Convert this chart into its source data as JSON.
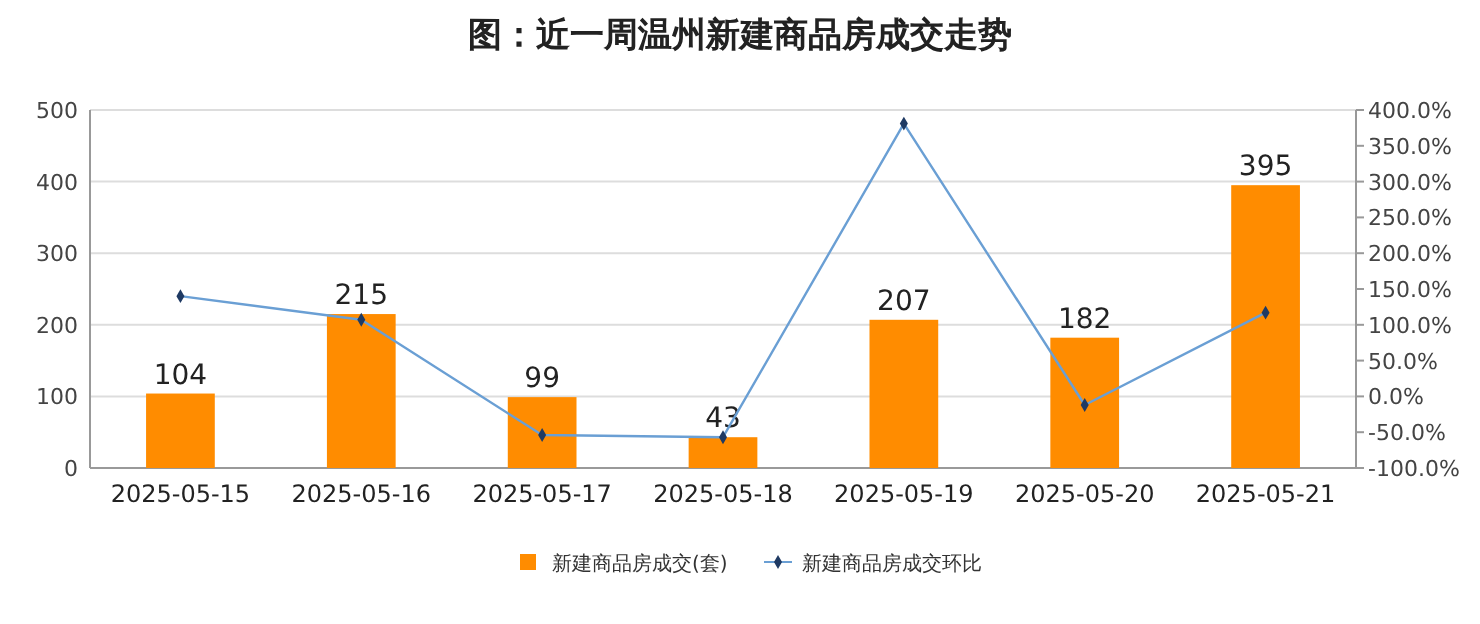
{
  "chart_data": {
    "type": "bar",
    "title": "图：近一周温州新建商品房成交走势",
    "categories": [
      "2025-05-15",
      "2025-05-16",
      "2025-05-17",
      "2025-05-18",
      "2025-05-19",
      "2025-05-20",
      "2025-05-21"
    ],
    "series": [
      {
        "name": "新建商品房成交(套)",
        "color": "#ff8c00",
        "values": [
          104,
          215,
          99,
          43,
          207,
          182,
          395
        ],
        "value_labels": [
          "104",
          "215",
          "99",
          "43",
          "207",
          "182",
          "395"
        ]
      },
      {
        "name": "新建商品房成交环比",
        "type": "line",
        "axis": "y2",
        "color": "#6a9fd4",
        "marker": "diamond",
        "values": [
          140,
          107,
          -54,
          -57,
          381,
          -12,
          117
        ]
      }
    ],
    "ylim": [
      0,
      500
    ],
    "yticks": [
      0,
      100,
      200,
      300,
      400,
      500
    ],
    "y2lim": [
      -100,
      400
    ],
    "y2ticks": [
      {
        "value": -100,
        "label": "-100.0%"
      },
      {
        "value": -50,
        "label": "-50.0%"
      },
      {
        "value": 0,
        "label": "0.0%"
      },
      {
        "value": 50,
        "label": "50.0%"
      },
      {
        "value": 100,
        "label": "100.0%"
      },
      {
        "value": 150,
        "label": "150.0%"
      },
      {
        "value": 200,
        "label": "200.0%"
      },
      {
        "value": 250,
        "label": "250.0%"
      },
      {
        "value": 300,
        "label": "300.0%"
      },
      {
        "value": 350,
        "label": "350.0%"
      },
      {
        "value": 400,
        "label": "400.0%"
      }
    ],
    "grid": "y",
    "legend": "bottom"
  }
}
